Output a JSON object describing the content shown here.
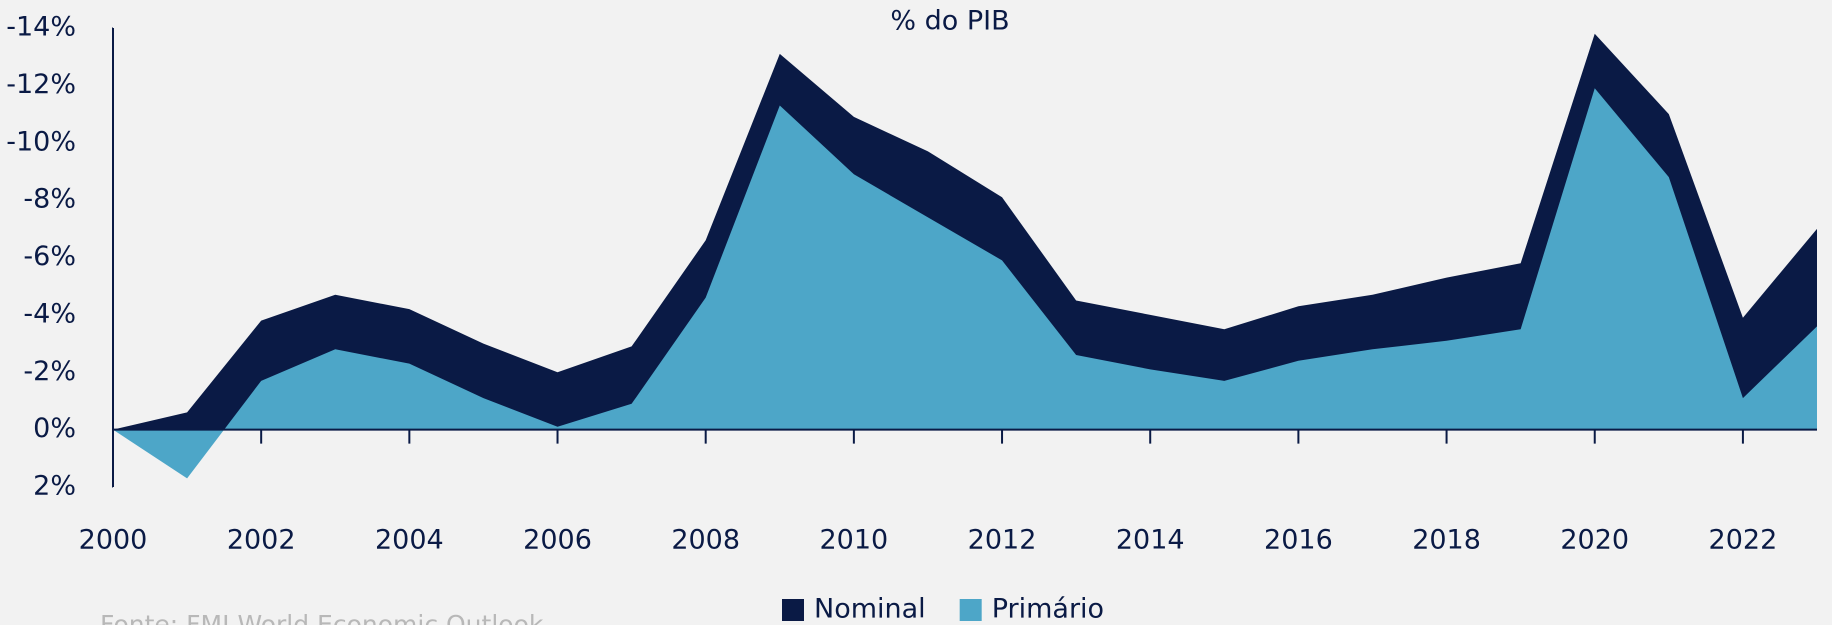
{
  "chart_data": {
    "type": "area",
    "title": "% do PIB",
    "source": "Fonte: FMI World Economic Outlook",
    "x": [
      2000,
      2001,
      2002,
      2003,
      2004,
      2005,
      2006,
      2007,
      2008,
      2009,
      2010,
      2011,
      2012,
      2013,
      2014,
      2015,
      2016,
      2017,
      2018,
      2019,
      2020,
      2021,
      2022,
      2023
    ],
    "series": [
      {
        "name": "Nominal",
        "color": "#0a1a45",
        "values": [
          0,
          -0.6,
          -3.8,
          -4.7,
          -4.2,
          -3.0,
          -2.0,
          -2.9,
          -6.6,
          -13.1,
          -10.9,
          -9.7,
          -8.1,
          -4.5,
          -4.0,
          -3.5,
          -4.3,
          -4.7,
          -5.3,
          -5.8,
          -13.8,
          -11.0,
          -3.9,
          -7.0
        ]
      },
      {
        "name": "Primário",
        "color": "#4da6c8",
        "values": [
          0,
          1.7,
          -1.7,
          -2.8,
          -2.3,
          -1.1,
          -0.1,
          -0.9,
          -4.6,
          -11.3,
          -8.9,
          -7.4,
          -5.9,
          -2.6,
          -2.1,
          -1.7,
          -2.4,
          -2.8,
          -3.1,
          -3.5,
          -11.9,
          -8.8,
          -1.1,
          -3.6
        ]
      }
    ],
    "xlim": [
      2000,
      2023
    ],
    "xticks": [
      2000,
      2002,
      2004,
      2006,
      2008,
      2010,
      2012,
      2014,
      2016,
      2018,
      2020,
      2022
    ],
    "ylim": [
      2,
      -14
    ],
    "yticks": [
      {
        "value": -14,
        "label": "-14%"
      },
      {
        "value": -12,
        "label": "-12%"
      },
      {
        "value": -10,
        "label": "-10%"
      },
      {
        "value": -8,
        "label": "-8%"
      },
      {
        "value": -6,
        "label": "-6%"
      },
      {
        "value": -4,
        "label": "-4%"
      },
      {
        "value": -2,
        "label": "-2%"
      },
      {
        "value": 0,
        "label": "0%"
      },
      {
        "value": 2,
        "label": "2%"
      }
    ],
    "legend": "bottom"
  }
}
